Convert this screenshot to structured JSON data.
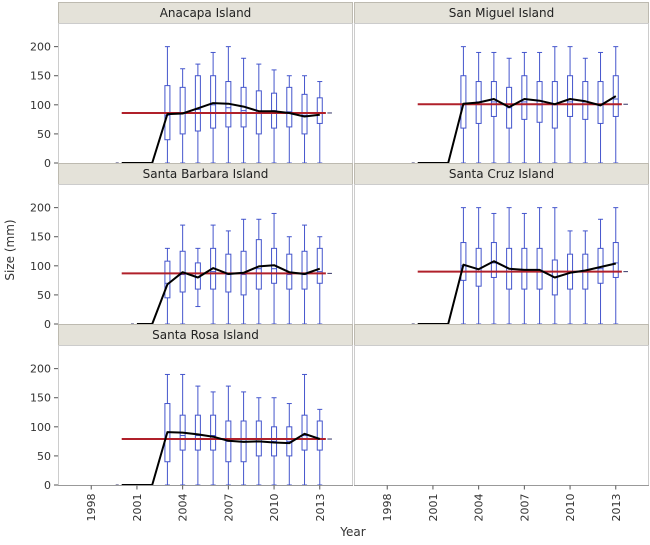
{
  "chart_data": {
    "type": "box",
    "xlabel": "Year",
    "ylabel": "Size (mm)",
    "xlim": [
      1997,
      2014
    ],
    "ylim": [
      0,
      220
    ],
    "x_ticks": [
      1998,
      2001,
      2004,
      2007,
      2010,
      2013
    ],
    "y_ticks": [
      0,
      50,
      100,
      150,
      200
    ],
    "colors": {
      "box": "#4455cc",
      "mean_line": "#000000",
      "reference_line": "#b0202a",
      "header_bg": "#e4e2d9"
    },
    "panels": [
      {
        "title": "Anacapa Island",
        "reference": 86,
        "boxes": [
          {
            "year": 2003,
            "min": 0,
            "q1": 40,
            "median": 82,
            "q3": 133,
            "max": 200
          },
          {
            "year": 2004,
            "min": 0,
            "q1": 50,
            "median": 85,
            "q3": 130,
            "max": 162
          },
          {
            "year": 2005,
            "min": 0,
            "q1": 55,
            "median": 92,
            "q3": 150,
            "max": 170
          },
          {
            "year": 2006,
            "min": 0,
            "q1": 60,
            "median": 100,
            "q3": 150,
            "max": 190
          },
          {
            "year": 2007,
            "min": 0,
            "q1": 62,
            "median": 95,
            "q3": 140,
            "max": 200
          },
          {
            "year": 2008,
            "min": 0,
            "q1": 62,
            "median": 90,
            "q3": 130,
            "max": 180
          },
          {
            "year": 2009,
            "min": 0,
            "q1": 50,
            "median": 85,
            "q3": 124,
            "max": 170
          },
          {
            "year": 2010,
            "min": 0,
            "q1": 60,
            "median": 90,
            "q3": 120,
            "max": 160
          },
          {
            "year": 2011,
            "min": 0,
            "q1": 62,
            "median": 88,
            "q3": 130,
            "max": 150
          },
          {
            "year": 2012,
            "min": 0,
            "q1": 50,
            "median": 82,
            "q3": 118,
            "max": 150
          },
          {
            "year": 2013,
            "min": 0,
            "q1": 68,
            "median": 85,
            "q3": 112,
            "max": 140
          }
        ],
        "mean_line": {
          "x": [
            2000,
            2002,
            2003,
            2004,
            2005,
            2006,
            2007,
            2008,
            2009,
            2010,
            2011,
            2012,
            2013
          ],
          "y": [
            0,
            0,
            84,
            85,
            94,
            103,
            102,
            97,
            89,
            89,
            86,
            80,
            83
          ]
        }
      },
      {
        "title": "San Miguel Island",
        "reference": 101,
        "boxes": [
          {
            "year": 2003,
            "min": 0,
            "q1": 60,
            "median": 100,
            "q3": 150,
            "max": 200
          },
          {
            "year": 2004,
            "min": 0,
            "q1": 68,
            "median": 105,
            "q3": 140,
            "max": 190
          },
          {
            "year": 2005,
            "min": 0,
            "q1": 80,
            "median": 105,
            "q3": 140,
            "max": 190
          },
          {
            "year": 2006,
            "min": 0,
            "q1": 60,
            "median": 95,
            "q3": 130,
            "max": 180
          },
          {
            "year": 2007,
            "min": 0,
            "q1": 75,
            "median": 105,
            "q3": 150,
            "max": 190
          },
          {
            "year": 2008,
            "min": 0,
            "q1": 70,
            "median": 100,
            "q3": 140,
            "max": 190
          },
          {
            "year": 2009,
            "min": 0,
            "q1": 60,
            "median": 100,
            "q3": 140,
            "max": 200
          },
          {
            "year": 2010,
            "min": 0,
            "q1": 80,
            "median": 105,
            "q3": 150,
            "max": 200
          },
          {
            "year": 2011,
            "min": 0,
            "q1": 75,
            "median": 105,
            "q3": 140,
            "max": 180
          },
          {
            "year": 2012,
            "min": 0,
            "q1": 68,
            "median": 100,
            "q3": 140,
            "max": 190
          },
          {
            "year": 2013,
            "min": 0,
            "q1": 80,
            "median": 110,
            "q3": 150,
            "max": 200
          }
        ],
        "mean_line": {
          "x": [
            2000,
            2002,
            2003,
            2004,
            2005,
            2006,
            2007,
            2008,
            2009,
            2010,
            2011,
            2012,
            2013
          ],
          "y": [
            0,
            0,
            102,
            104,
            110,
            96,
            110,
            107,
            101,
            110,
            106,
            99,
            115
          ]
        }
      },
      {
        "title": "Santa Barbara Island",
        "reference": 87,
        "boxes": [
          {
            "year": 2003,
            "min": 0,
            "q1": 45,
            "median": 70,
            "q3": 108,
            "max": 130
          },
          {
            "year": 2004,
            "min": 0,
            "q1": 55,
            "median": 85,
            "q3": 125,
            "max": 170
          },
          {
            "year": 2005,
            "min": 30,
            "q1": 60,
            "median": 80,
            "q3": 105,
            "max": 130
          },
          {
            "year": 2006,
            "min": 0,
            "q1": 60,
            "median": 90,
            "q3": 130,
            "max": 170
          },
          {
            "year": 2007,
            "min": 0,
            "q1": 55,
            "median": 85,
            "q3": 120,
            "max": 160
          },
          {
            "year": 2008,
            "min": 0,
            "q1": 50,
            "median": 85,
            "q3": 125,
            "max": 180
          },
          {
            "year": 2009,
            "min": 0,
            "q1": 60,
            "median": 95,
            "q3": 145,
            "max": 180
          },
          {
            "year": 2010,
            "min": 0,
            "q1": 70,
            "median": 95,
            "q3": 130,
            "max": 190
          },
          {
            "year": 2011,
            "min": 0,
            "q1": 60,
            "median": 85,
            "q3": 120,
            "max": 150
          },
          {
            "year": 2012,
            "min": 0,
            "q1": 60,
            "median": 85,
            "q3": 125,
            "max": 170
          },
          {
            "year": 2013,
            "min": 0,
            "q1": 70,
            "median": 90,
            "q3": 130,
            "max": 150
          }
        ],
        "mean_line": {
          "x": [
            2001,
            2002,
            2003,
            2004,
            2005,
            2006,
            2007,
            2008,
            2009,
            2010,
            2011,
            2012,
            2013
          ],
          "y": [
            0,
            0,
            68,
            89,
            80,
            96,
            86,
            88,
            99,
            101,
            89,
            86,
            95
          ]
        }
      },
      {
        "title": "Santa Cruz Island",
        "reference": 90,
        "boxes": [
          {
            "year": 2003,
            "min": 0,
            "q1": 75,
            "median": 100,
            "q3": 140,
            "max": 200
          },
          {
            "year": 2004,
            "min": 0,
            "q1": 65,
            "median": 95,
            "q3": 130,
            "max": 200
          },
          {
            "year": 2005,
            "min": 0,
            "q1": 80,
            "median": 105,
            "q3": 140,
            "max": 190
          },
          {
            "year": 2006,
            "min": 0,
            "q1": 60,
            "median": 90,
            "q3": 130,
            "max": 200
          },
          {
            "year": 2007,
            "min": 0,
            "q1": 60,
            "median": 90,
            "q3": 130,
            "max": 190
          },
          {
            "year": 2008,
            "min": 0,
            "q1": 60,
            "median": 90,
            "q3": 130,
            "max": 200
          },
          {
            "year": 2009,
            "min": 0,
            "q1": 50,
            "median": 80,
            "q3": 110,
            "max": 200
          },
          {
            "year": 2010,
            "min": 0,
            "q1": 60,
            "median": 90,
            "q3": 120,
            "max": 160
          },
          {
            "year": 2011,
            "min": 0,
            "q1": 60,
            "median": 90,
            "q3": 120,
            "max": 160
          },
          {
            "year": 2012,
            "min": 0,
            "q1": 70,
            "median": 95,
            "q3": 130,
            "max": 180
          },
          {
            "year": 2013,
            "min": 0,
            "q1": 80,
            "median": 105,
            "q3": 140,
            "max": 200
          }
        ],
        "mean_line": {
          "x": [
            2000,
            2002,
            2003,
            2004,
            2005,
            2006,
            2007,
            2008,
            2009,
            2010,
            2011,
            2012,
            2013
          ],
          "y": [
            0,
            0,
            102,
            94,
            108,
            95,
            93,
            93,
            80,
            88,
            92,
            98,
            104
          ]
        }
      },
      {
        "title": "Santa Rosa Island",
        "reference": 79,
        "boxes": [
          {
            "year": 2003,
            "min": 0,
            "q1": 40,
            "median": 80,
            "q3": 140,
            "max": 190
          },
          {
            "year": 2004,
            "min": 0,
            "q1": 60,
            "median": 85,
            "q3": 120,
            "max": 190
          },
          {
            "year": 2005,
            "min": 0,
            "q1": 60,
            "median": 85,
            "q3": 120,
            "max": 170
          },
          {
            "year": 2006,
            "min": 0,
            "q1": 60,
            "median": 85,
            "q3": 120,
            "max": 160
          },
          {
            "year": 2007,
            "min": 0,
            "q1": 40,
            "median": 75,
            "q3": 110,
            "max": 170
          },
          {
            "year": 2008,
            "min": 0,
            "q1": 40,
            "median": 75,
            "q3": 110,
            "max": 160
          },
          {
            "year": 2009,
            "min": 0,
            "q1": 50,
            "median": 75,
            "q3": 110,
            "max": 150
          },
          {
            "year": 2010,
            "min": 0,
            "q1": 50,
            "median": 75,
            "q3": 100,
            "max": 150
          },
          {
            "year": 2011,
            "min": 0,
            "q1": 50,
            "median": 75,
            "q3": 100,
            "max": 140
          },
          {
            "year": 2012,
            "min": 0,
            "q1": 60,
            "median": 85,
            "q3": 120,
            "max": 190
          },
          {
            "year": 2013,
            "min": 0,
            "q1": 60,
            "median": 80,
            "q3": 110,
            "max": 130
          }
        ],
        "mean_line": {
          "x": [
            2000,
            2002,
            2003,
            2004,
            2005,
            2006,
            2007,
            2008,
            2009,
            2010,
            2011,
            2012,
            2013
          ],
          "y": [
            0,
            0,
            91,
            90,
            87,
            83,
            76,
            74,
            75,
            73,
            72,
            88,
            79
          ]
        }
      },
      {
        "title": "",
        "reference": null,
        "boxes": [],
        "mean_line": null
      }
    ]
  }
}
